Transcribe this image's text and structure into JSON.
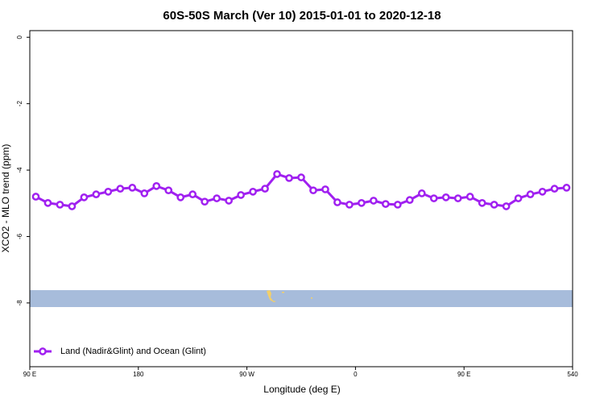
{
  "chart_data": {
    "type": "line",
    "title": "60S-50S March (Ver 10)   2015-01-01 to 2020-12-18",
    "xlabel": "Longitude (deg E)",
    "ylabel": "XCO2 - MLO trend (ppm)",
    "x": [
      95,
      105,
      115,
      125,
      135,
      145,
      155,
      165,
      175,
      185,
      195,
      205,
      215,
      225,
      235,
      245,
      255,
      265,
      275,
      285,
      295,
      305,
      315,
      325,
      335,
      345,
      355,
      365,
      375,
      385,
      395,
      405,
      415,
      425,
      435,
      445,
      455,
      465,
      475,
      485,
      495,
      505,
      515,
      525,
      535
    ],
    "series": [
      {
        "name": "Land (Nadir&Glint) and Ocean (Glint)",
        "color": "#a020f0",
        "values": [
          -4.8,
          -4.99,
          -5.04,
          -5.09,
          -4.82,
          -4.73,
          -4.65,
          -4.56,
          -4.53,
          -4.7,
          -4.48,
          -4.61,
          -4.82,
          -4.73,
          -4.95,
          -4.85,
          -4.92,
          -4.75,
          -4.65,
          -4.56,
          -4.12,
          -4.24,
          -4.22,
          -4.61,
          -4.58,
          -4.97,
          -5.04,
          -4.99,
          -4.92,
          -5.02,
          -5.04,
          -4.9,
          -4.7,
          -4.85,
          -4.82,
          -4.85,
          -4.8,
          -4.99,
          -5.04,
          -5.09,
          -4.85,
          -4.73,
          -4.65,
          -4.56,
          -4.53
        ]
      }
    ],
    "xlim": [
      90,
      540
    ],
    "xticks": [
      {
        "value": 90,
        "label": "90 E"
      },
      180,
      {
        "value": 270,
        "label": "90 W"
      },
      {
        "value": 360,
        "label": "0"
      },
      {
        "value": 450,
        "label": "90 E"
      },
      540
    ],
    "ylim": [
      -9.92,
      0.2
    ],
    "yticks": [
      0,
      -2,
      -4,
      -6,
      -8
    ],
    "legend": "bottom-left"
  }
}
